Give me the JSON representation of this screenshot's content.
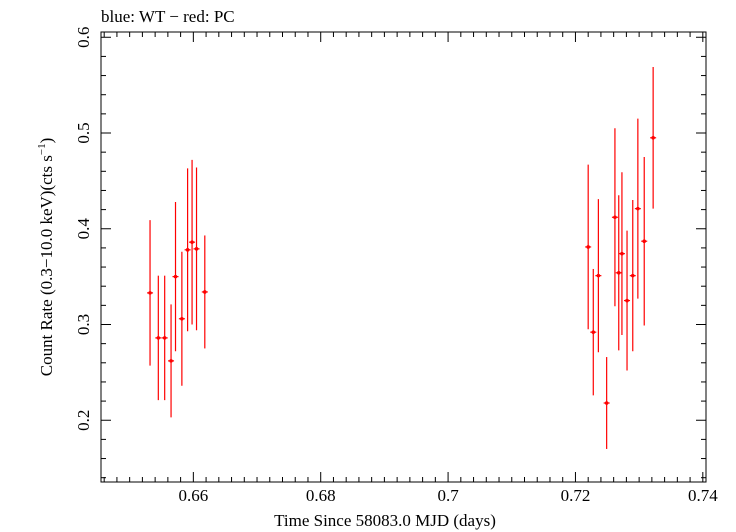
{
  "chart_data": {
    "type": "scatter",
    "title": "blue: WT − red: PC",
    "xlabel": "Time Since 58083.0 MJD (days)",
    "ylabel_main": "Count Rate (0.3−10.0 keV)(cts s",
    "ylabel_sup": "−1",
    "ylabel_close": ")",
    "xlim": [
      0.6455,
      0.7405
    ],
    "ylim": [
      0.1355,
      0.6055
    ],
    "x_ticks": [
      0.66,
      0.68,
      0.7,
      0.72,
      0.74
    ],
    "x_tick_labels": [
      "0.66",
      "0.68",
      "0.7",
      "0.72",
      "0.74"
    ],
    "y_ticks": [
      0.2,
      0.3,
      0.4,
      0.5,
      0.6
    ],
    "y_tick_labels": [
      "0.2",
      "0.3",
      "0.4",
      "0.5",
      "0.6"
    ],
    "grid": false,
    "series": [
      {
        "color": "#ff0000",
        "points": [
          {
            "x": 0.6532,
            "y": 0.333,
            "yerr": 0.076
          },
          {
            "x": 0.6545,
            "y": 0.286,
            "yerr": 0.065
          },
          {
            "x": 0.6555,
            "y": 0.286,
            "yerr": 0.065
          },
          {
            "x": 0.6565,
            "y": 0.262,
            "yerr": 0.059
          },
          {
            "x": 0.6572,
            "y": 0.35,
            "yerr": 0.078
          },
          {
            "x": 0.6582,
            "y": 0.306,
            "yerr": 0.07
          },
          {
            "x": 0.6591,
            "y": 0.378,
            "yerr": 0.085
          },
          {
            "x": 0.6598,
            "y": 0.386,
            "yerr": 0.086
          },
          {
            "x": 0.6605,
            "y": 0.379,
            "yerr": 0.085
          },
          {
            "x": 0.6618,
            "y": 0.334,
            "yerr": 0.059
          },
          {
            "x": 0.722,
            "y": 0.381,
            "yerr": 0.086
          },
          {
            "x": 0.7228,
            "y": 0.292,
            "yerr": 0.066
          },
          {
            "x": 0.7236,
            "y": 0.351,
            "yerr": 0.08
          },
          {
            "x": 0.7249,
            "y": 0.218,
            "yerr": 0.048
          },
          {
            "x": 0.7262,
            "y": 0.412,
            "yerr": 0.093
          },
          {
            "x": 0.7268,
            "y": 0.354,
            "yerr": 0.081
          },
          {
            "x": 0.7273,
            "y": 0.374,
            "yerr": 0.085
          },
          {
            "x": 0.7281,
            "y": 0.325,
            "yerr": 0.073
          },
          {
            "x": 0.729,
            "y": 0.351,
            "yerr": 0.079
          },
          {
            "x": 0.7298,
            "y": 0.421,
            "yerr": 0.094
          },
          {
            "x": 0.7308,
            "y": 0.387,
            "yerr": 0.088
          },
          {
            "x": 0.7322,
            "y": 0.495,
            "yerr": 0.074
          }
        ]
      }
    ]
  }
}
